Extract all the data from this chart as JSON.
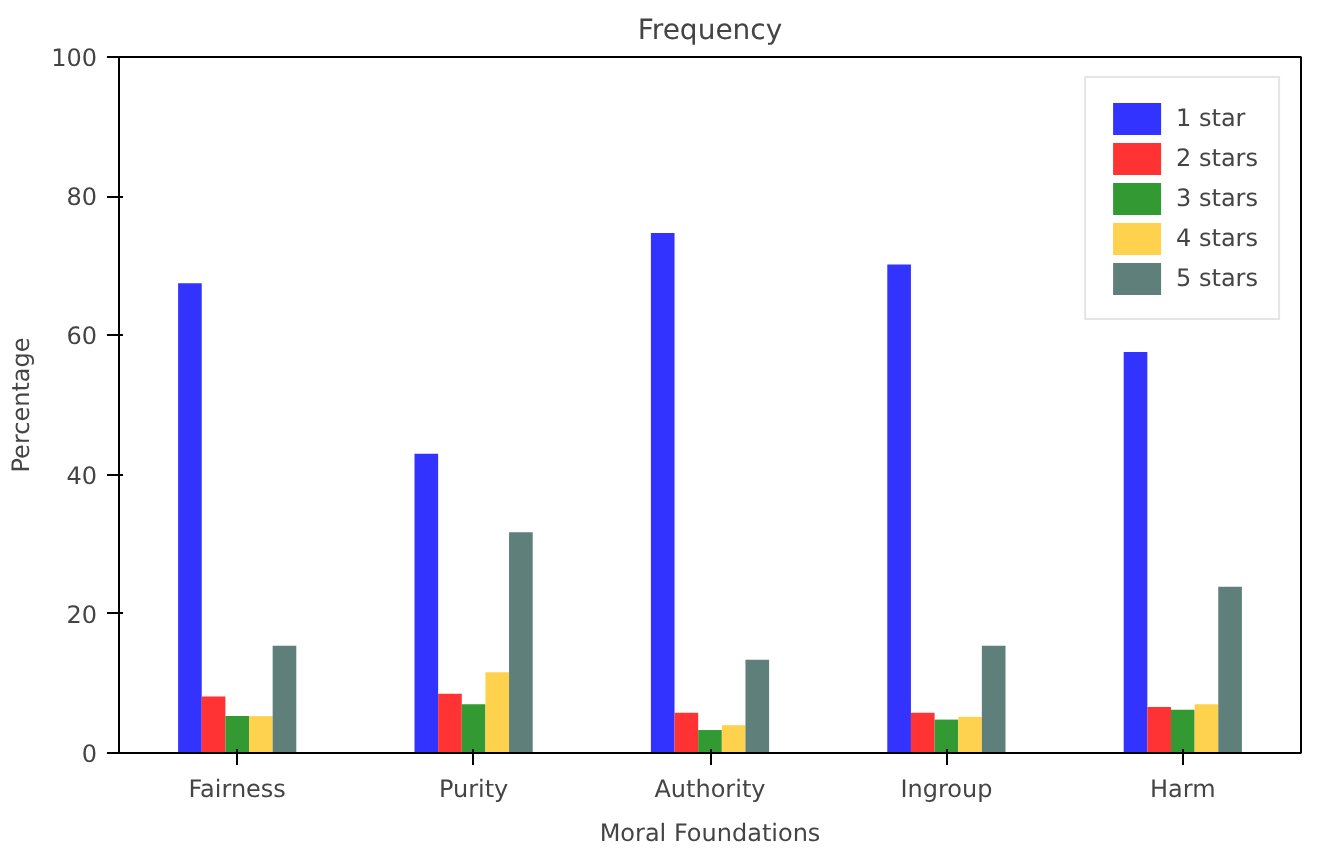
{
  "chart_data": {
    "type": "bar",
    "title": "Frequency",
    "xlabel": "Moral Foundations",
    "ylabel": "Percentage",
    "categories": [
      "Fairness",
      "Purity",
      "Authority",
      "Ingroup",
      "Harm"
    ],
    "series": [
      {
        "name": "1 star",
        "color": "#3333ff",
        "values": [
          67.5,
          43,
          74.7,
          70.2,
          57.6
        ]
      },
      {
        "name": "2 stars",
        "color": "#ff3333",
        "values": [
          8.1,
          8.5,
          5.8,
          5.8,
          6.6
        ]
      },
      {
        "name": "3 stars",
        "color": "#339933",
        "values": [
          5.3,
          7,
          3.3,
          4.8,
          6.2
        ]
      },
      {
        "name": "4 stars",
        "color": "#ffd24d",
        "values": [
          5.3,
          11.6,
          4,
          5.2,
          7
        ]
      },
      {
        "name": "5 stars",
        "color": "#5f7f7a",
        "values": [
          15.4,
          31.7,
          13.4,
          15.4,
          23.9
        ]
      }
    ],
    "ylim": [
      0,
      100
    ],
    "yticks": [
      0,
      20,
      40,
      60,
      80,
      100
    ],
    "grid": false,
    "legend": "top right"
  }
}
